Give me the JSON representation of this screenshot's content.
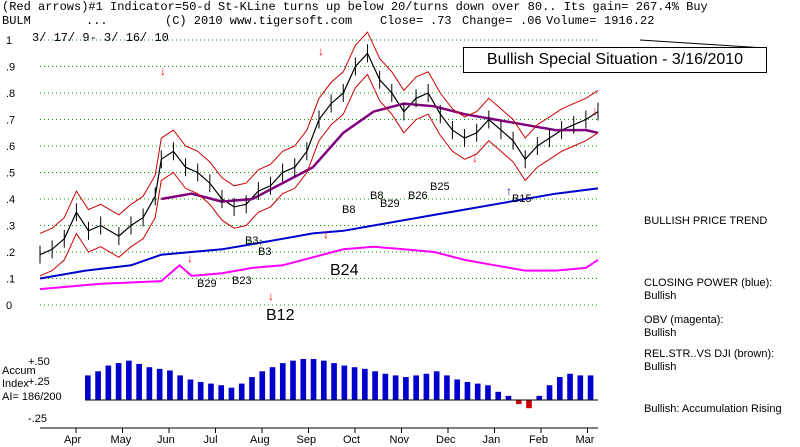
{
  "header": {
    "line1": "(Red arrows)#1 Indicator=50-d St-KLine turns up below 20/turns down over 80.. Its gain= 267.4% Buy",
    "ticker": "BULM",
    "dots": "...",
    "copyright": "(C) 2010 www.tigersoft.com",
    "close_label": "Close=",
    "close_value": ".73",
    "change_label": "Change=",
    "change_value": ".06",
    "volume_label": "Volume=",
    "volume_value": "1916.22",
    "date_range": "3/ 17/ 9- 3/ 16/ 10"
  },
  "title_box": "Bullish Special Situation - 3/16/2010",
  "side_labels": {
    "price_trend": "BULLISH PRICE TREND",
    "closing_power": [
      "CLOSING POWER (blue):",
      "Bullish"
    ],
    "obv": [
      "OBV (magenta):",
      "Bullish"
    ],
    "rel_str": [
      "REL.STR..VS DJI (brown):",
      "Bullish"
    ],
    "accum_rising": "Bullish: Accumulation Rising"
  },
  "accum_labels": {
    "title1": "Accum",
    "title2": "Index",
    "ai": "AI= 186/200",
    "p50": "+.50",
    "p25": "+.25",
    "m25": "-.25"
  },
  "signals": [
    "B8",
    "B8",
    "B29",
    "B26",
    "B25",
    "B15",
    "B24",
    "B12",
    "B3",
    "B23",
    "B29",
    "B3"
  ],
  "colors": {
    "price_bar": "#000000",
    "bollinger": "#cc0000",
    "ma50": "#800080",
    "closing_power": "#0000cc",
    "obv": "#ff00ff",
    "rel_str": "#000000",
    "accum": "#0000cc",
    "sell_arrow": "#ff0000",
    "buy_arrow_blue": "#0000ff",
    "buy_arrow_green": "#008000"
  },
  "chart_data": {
    "type": "line",
    "title": "Bullish Special Situation - 3/16/2010",
    "x_ticks": [
      "Apr",
      "May",
      "Jun",
      "Jul",
      "Aug",
      "Sep",
      "Oct",
      "Nov",
      "Dec",
      "Jan",
      "Feb",
      "Mar"
    ],
    "y_ticks": [
      "1",
      ".9",
      ".8",
      ".7",
      ".6",
      ".5",
      ".4",
      ".3",
      ".2",
      ".1",
      "0"
    ],
    "ylim": [
      0,
      1
    ],
    "series": [
      {
        "points": [
          [
            0,
            0.19
          ],
          [
            4,
            0.21
          ],
          [
            8,
            0.25
          ],
          [
            12,
            0.35
          ],
          [
            16,
            0.28
          ],
          [
            20,
            0.3
          ],
          [
            26,
            0.26
          ],
          [
            30,
            0.3
          ],
          [
            34,
            0.33
          ],
          [
            38,
            0.41
          ],
          [
            40,
            0.55
          ],
          [
            44,
            0.58
          ],
          [
            48,
            0.52
          ],
          [
            52,
            0.5
          ],
          [
            56,
            0.46
          ],
          [
            60,
            0.4
          ],
          [
            64,
            0.37
          ],
          [
            68,
            0.38
          ],
          [
            72,
            0.43
          ],
          [
            76,
            0.45
          ],
          [
            80,
            0.5
          ],
          [
            84,
            0.52
          ],
          [
            88,
            0.58
          ],
          [
            92,
            0.7
          ],
          [
            96,
            0.76
          ],
          [
            100,
            0.8
          ],
          [
            104,
            0.9
          ],
          [
            108,
            0.95
          ],
          [
            112,
            0.85
          ],
          [
            116,
            0.8
          ],
          [
            120,
            0.73
          ],
          [
            124,
            0.78
          ],
          [
            128,
            0.8
          ],
          [
            132,
            0.72
          ],
          [
            136,
            0.66
          ],
          [
            140,
            0.63
          ],
          [
            144,
            0.65
          ],
          [
            148,
            0.7
          ],
          [
            152,
            0.66
          ],
          [
            156,
            0.62
          ],
          [
            160,
            0.55
          ],
          [
            164,
            0.6
          ],
          [
            168,
            0.63
          ],
          [
            172,
            0.66
          ],
          [
            176,
            0.68
          ],
          [
            180,
            0.7
          ],
          [
            184,
            0.73
          ]
        ]
      },
      {
        "points": [
          [
            40,
            0.4
          ],
          [
            50,
            0.42
          ],
          [
            60,
            0.39
          ],
          [
            70,
            0.4
          ],
          [
            80,
            0.46
          ],
          [
            90,
            0.52
          ],
          [
            100,
            0.65
          ],
          [
            110,
            0.73
          ],
          [
            120,
            0.76
          ],
          [
            130,
            0.75
          ],
          [
            140,
            0.72
          ],
          [
            150,
            0.7
          ],
          [
            160,
            0.68
          ],
          [
            170,
            0.66
          ],
          [
            180,
            0.66
          ],
          [
            184,
            0.65
          ]
        ]
      },
      {
        "points": [
          [
            0,
            0.1
          ],
          [
            15,
            0.13
          ],
          [
            30,
            0.15
          ],
          [
            40,
            0.19
          ],
          [
            50,
            0.2
          ],
          [
            60,
            0.21
          ],
          [
            70,
            0.23
          ],
          [
            80,
            0.25
          ],
          [
            90,
            0.27
          ],
          [
            100,
            0.28
          ],
          [
            110,
            0.3
          ],
          [
            120,
            0.32
          ],
          [
            130,
            0.34
          ],
          [
            140,
            0.36
          ],
          [
            150,
            0.38
          ],
          [
            160,
            0.4
          ],
          [
            170,
            0.42
          ],
          [
            184,
            0.44
          ]
        ]
      },
      {
        "points": [
          [
            0,
            0.06
          ],
          [
            20,
            0.08
          ],
          [
            40,
            0.09
          ],
          [
            46,
            0.15
          ],
          [
            50,
            0.11
          ],
          [
            60,
            0.12
          ],
          [
            70,
            0.14
          ],
          [
            80,
            0.15
          ],
          [
            90,
            0.18
          ],
          [
            100,
            0.21
          ],
          [
            110,
            0.22
          ],
          [
            120,
            0.21
          ],
          [
            130,
            0.2
          ],
          [
            140,
            0.17
          ],
          [
            150,
            0.15
          ],
          [
            160,
            0.13
          ],
          [
            170,
            0.13
          ],
          [
            180,
            0.14
          ],
          [
            184,
            0.17
          ]
        ]
      }
    ],
    "accumulation": {
      "ylim": [
        -0.25,
        0.5
      ],
      "y_ticks": [
        "+.50",
        "+.25",
        "-.25"
      ],
      "values": [
        0.3,
        0.35,
        0.42,
        0.45,
        0.48,
        0.44,
        0.4,
        0.38,
        0.36,
        0.3,
        0.25,
        0.22,
        0.2,
        0.18,
        0.15,
        0.2,
        0.28,
        0.35,
        0.4,
        0.45,
        0.48,
        0.5,
        0.5,
        0.48,
        0.45,
        0.42,
        0.4,
        0.38,
        0.35,
        0.32,
        0.3,
        0.28,
        0.3,
        0.32,
        0.35,
        0.3,
        0.25,
        0.22,
        0.2,
        0.18,
        0.1,
        0.05,
        -0.05,
        -0.1,
        0.05,
        0.18,
        0.28,
        0.32,
        0.3,
        0.3
      ]
    }
  }
}
